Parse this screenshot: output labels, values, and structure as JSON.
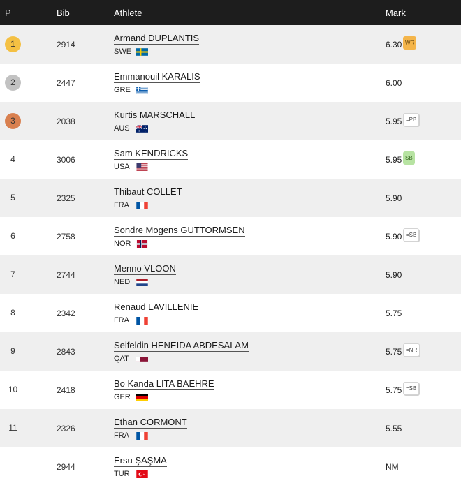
{
  "header": {
    "pos": "P",
    "bib": "Bib",
    "athlete": "Athlete",
    "mark": "Mark"
  },
  "rows": [
    {
      "pos": "1",
      "medal": "gold",
      "bib": "2914",
      "name": "Armand DUPLANTIS",
      "country": "SWE",
      "flag": "swe",
      "mark": "6.30",
      "badge": "WR",
      "badge_style": "wr"
    },
    {
      "pos": "2",
      "medal": "silver",
      "bib": "2447",
      "name": "Emmanouil KARALIS",
      "country": "GRE",
      "flag": "gre",
      "mark": "6.00",
      "badge": "",
      "badge_style": ""
    },
    {
      "pos": "3",
      "medal": "bronze",
      "bib": "2038",
      "name": "Kurtis MARSCHALL",
      "country": "AUS",
      "flag": "aus",
      "mark": "5.95",
      "badge": "=PB",
      "badge_style": "outline"
    },
    {
      "pos": "4",
      "medal": "",
      "bib": "3006",
      "name": "Sam KENDRICKS",
      "country": "USA",
      "flag": "usa",
      "mark": "5.95",
      "badge": "SB",
      "badge_style": "sb"
    },
    {
      "pos": "5",
      "medal": "",
      "bib": "2325",
      "name": "Thibaut COLLET",
      "country": "FRA",
      "flag": "fra",
      "mark": "5.90",
      "badge": "",
      "badge_style": ""
    },
    {
      "pos": "6",
      "medal": "",
      "bib": "2758",
      "name": "Sondre Mogens GUTTORMSEN",
      "country": "NOR",
      "flag": "nor",
      "mark": "5.90",
      "badge": "=SB",
      "badge_style": "outline"
    },
    {
      "pos": "7",
      "medal": "",
      "bib": "2744",
      "name": "Menno VLOON",
      "country": "NED",
      "flag": "ned",
      "mark": "5.90",
      "badge": "",
      "badge_style": ""
    },
    {
      "pos": "8",
      "medal": "",
      "bib": "2342",
      "name": "Renaud LAVILLENIE",
      "country": "FRA",
      "flag": "fra",
      "mark": "5.75",
      "badge": "",
      "badge_style": ""
    },
    {
      "pos": "9",
      "medal": "",
      "bib": "2843",
      "name": "Seifeldin HENEIDA ABDESALAM",
      "country": "QAT",
      "flag": "qat",
      "mark": "5.75",
      "badge": "=NR",
      "badge_style": "outline"
    },
    {
      "pos": "10",
      "medal": "",
      "bib": "2418",
      "name": "Bo Kanda LITA BAEHRE",
      "country": "GER",
      "flag": "ger",
      "mark": "5.75",
      "badge": "=SB",
      "badge_style": "outline"
    },
    {
      "pos": "11",
      "medal": "",
      "bib": "2326",
      "name": "Ethan CORMONT",
      "country": "FRA",
      "flag": "fra",
      "mark": "5.55",
      "badge": "",
      "badge_style": ""
    },
    {
      "pos": "",
      "medal": "",
      "bib": "2944",
      "name": "Ersu ŞAŞMA",
      "country": "TUR",
      "flag": "tur",
      "mark": "NM",
      "badge": "",
      "badge_style": ""
    }
  ]
}
